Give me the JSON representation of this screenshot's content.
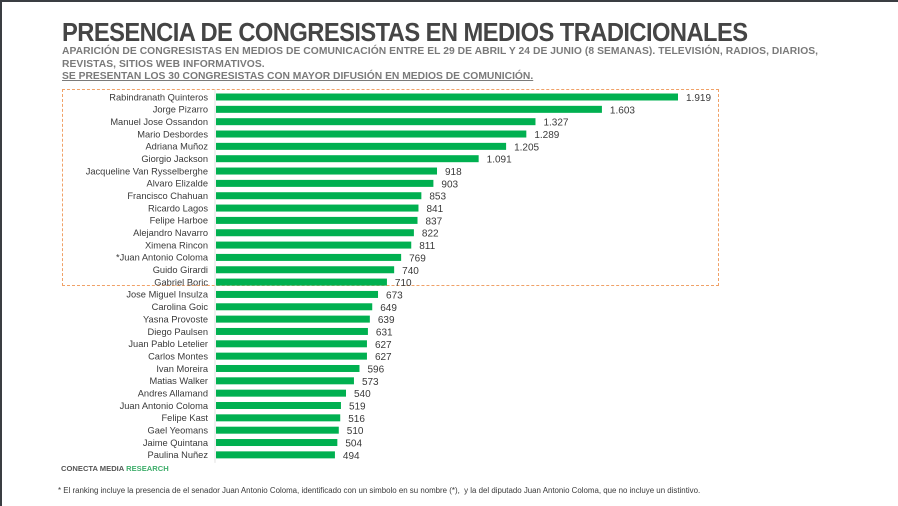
{
  "header": {
    "title": "PRESENCIA DE CONGRESISTAS EN MEDIOS TRADICIONALES",
    "subtitle": "APARICIÓN DE CONGRESISTAS EN MEDIOS DE COMUNICACIÓN ENTRE EL 29 DE ABRIL Y 24 DE JUNIO (8 SEMANAS). TELEVISIÓN, RADIOS, DIARIOS, REVISTAS, SITIOS WEB INFORMATIVOS.",
    "note": "SE PRESENTAN LOS 30 CONGRESISTAS CON MAYOR DIFUSIÓN EN MEDIOS DE COMUNICIÓN."
  },
  "footer": {
    "source_prefix": "CONECTA MEDIA",
    "source_accent": "RESEARCH",
    "footnote": "* El ranking incluye la presencia de el senador Juan Antonio Coloma, identificado con un simbolo en su nombre (*),  y la del diputado Juan Antonio Coloma, que no incluye un distintivo."
  },
  "colors": {
    "bar": "#00b050",
    "highlight_border": "#f0a167",
    "title": "#454545",
    "subtitle": "#7a7a7a",
    "accent": "#3fae6b"
  },
  "chart_data": {
    "type": "bar",
    "orientation": "horizontal",
    "title": "PRESENCIA DE CONGRESISTAS EN MEDIOS TRADICIONALES",
    "xlabel": "",
    "ylabel": "",
    "xlim": [
      0,
      1919
    ],
    "grid": false,
    "legend": "none",
    "highlighted_top_n": 16,
    "categories": [
      "Rabindranath Quinteros",
      "Jorge Pizarro",
      "Manuel Jose Ossandon",
      "Mario Desbordes",
      "Adriana Muñoz",
      "Giorgio Jackson",
      "Jacqueline Van Rysselberghe",
      "Alvaro  Elizalde",
      "Francisco Chahuan",
      "Ricardo  Lagos",
      "Felipe Harboe",
      "Alejandro Navarro",
      "Ximena Rincon",
      "*Juan Antonio Coloma",
      "Guido Girardi",
      "Gabriel Boric",
      "Jose Miguel Insulza",
      "Carolina Goic",
      "Yasna Provoste",
      "Diego Paulsen",
      "Juan Pablo Letelier",
      "Carlos Montes",
      "Ivan Moreira",
      "Matias Walker",
      "Andres Allamand",
      "Juan Antonio Coloma",
      "Felipe Kast",
      "Gael Yeomans",
      "Jaime Quintana",
      "Paulina Nuñez"
    ],
    "values": [
      1919,
      1603,
      1327,
      1289,
      1205,
      1091,
      918,
      903,
      853,
      841,
      837,
      822,
      811,
      769,
      740,
      710,
      673,
      649,
      639,
      631,
      627,
      627,
      596,
      573,
      540,
      519,
      516,
      510,
      504,
      494
    ],
    "value_labels": [
      "1.919",
      "1.603",
      "1.327",
      "1.289",
      "1.205",
      "1.091",
      "918",
      "903",
      "853",
      "841",
      "837",
      "822",
      "811",
      "769",
      "740",
      "710",
      "673",
      "649",
      "639",
      "631",
      "627",
      "627",
      "596",
      "573",
      "540",
      "519",
      "516",
      "510",
      "504",
      "494"
    ]
  }
}
